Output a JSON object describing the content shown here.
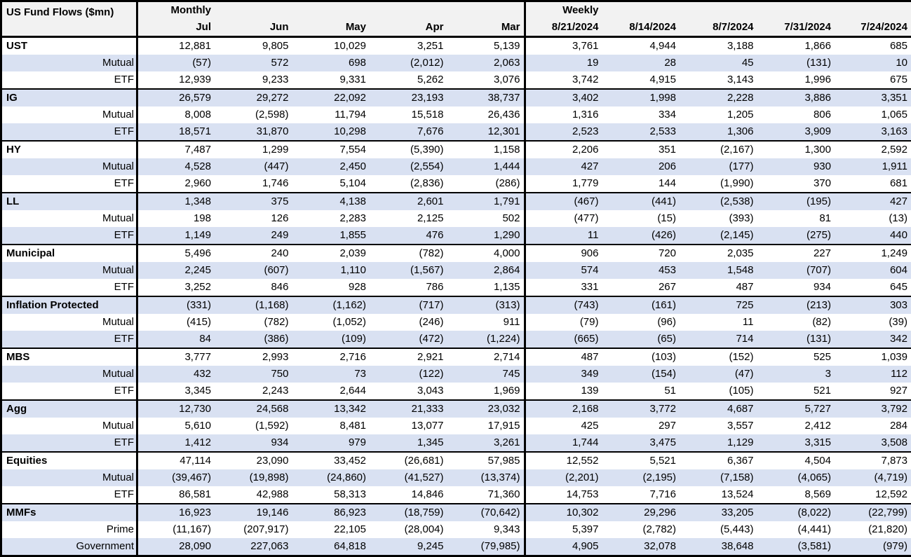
{
  "colors": {
    "band": "#d9e1f2",
    "header_bg": "#f2f2f2",
    "border": "#000000",
    "text": "#000000"
  },
  "chart_data": {
    "type": "table",
    "title": "US Fund Flows ($mn)",
    "column_groups": [
      {
        "label": "Monthly",
        "columns": [
          "Jul",
          "Jun",
          "May",
          "Apr",
          "Mar"
        ]
      },
      {
        "label": "Weekly",
        "columns": [
          "8/21/2024",
          "8/14/2024",
          "8/7/2024",
          "7/31/2024",
          "7/24/2024"
        ]
      }
    ],
    "sections": [
      {
        "name": "UST",
        "rows": [
          {
            "label": "UST",
            "values": [
              "12,881",
              "9,805",
              "10,029",
              "3,251",
              "5,139",
              "3,761",
              "4,944",
              "3,188",
              "1,866",
              "685"
            ]
          },
          {
            "label": "Mutual",
            "values": [
              "(57)",
              "572",
              "698",
              "(2,012)",
              "2,063",
              "19",
              "28",
              "45",
              "(131)",
              "10"
            ]
          },
          {
            "label": "ETF",
            "values": [
              "12,939",
              "9,233",
              "9,331",
              "5,262",
              "3,076",
              "3,742",
              "4,915",
              "3,143",
              "1,996",
              "675"
            ]
          }
        ]
      },
      {
        "name": "IG",
        "rows": [
          {
            "label": "IG",
            "values": [
              "26,579",
              "29,272",
              "22,092",
              "23,193",
              "38,737",
              "3,402",
              "1,998",
              "2,228",
              "3,886",
              "3,351"
            ]
          },
          {
            "label": "Mutual",
            "values": [
              "8,008",
              "(2,598)",
              "11,794",
              "15,518",
              "26,436",
              "1,316",
              "334",
              "1,205",
              "806",
              "1,065"
            ]
          },
          {
            "label": "ETF",
            "values": [
              "18,571",
              "31,870",
              "10,298",
              "7,676",
              "12,301",
              "2,523",
              "2,533",
              "1,306",
              "3,909",
              "3,163"
            ]
          }
        ]
      },
      {
        "name": "HY",
        "rows": [
          {
            "label": "HY",
            "values": [
              "7,487",
              "1,299",
              "7,554",
              "(5,390)",
              "1,158",
              "2,206",
              "351",
              "(2,167)",
              "1,300",
              "2,592"
            ]
          },
          {
            "label": "Mutual",
            "values": [
              "4,528",
              "(447)",
              "2,450",
              "(2,554)",
              "1,444",
              "427",
              "206",
              "(177)",
              "930",
              "1,911"
            ]
          },
          {
            "label": "ETF",
            "values": [
              "2,960",
              "1,746",
              "5,104",
              "(2,836)",
              "(286)",
              "1,779",
              "144",
              "(1,990)",
              "370",
              "681"
            ]
          }
        ]
      },
      {
        "name": "LL",
        "rows": [
          {
            "label": "LL",
            "values": [
              "1,348",
              "375",
              "4,138",
              "2,601",
              "1,791",
              "(467)",
              "(441)",
              "(2,538)",
              "(195)",
              "427"
            ]
          },
          {
            "label": "Mutual",
            "values": [
              "198",
              "126",
              "2,283",
              "2,125",
              "502",
              "(477)",
              "(15)",
              "(393)",
              "81",
              "(13)"
            ]
          },
          {
            "label": "ETF",
            "values": [
              "1,149",
              "249",
              "1,855",
              "476",
              "1,290",
              "11",
              "(426)",
              "(2,145)",
              "(275)",
              "440"
            ]
          }
        ]
      },
      {
        "name": "Municipal",
        "rows": [
          {
            "label": "Municipal",
            "values": [
              "5,496",
              "240",
              "2,039",
              "(782)",
              "4,000",
              "906",
              "720",
              "2,035",
              "227",
              "1,249"
            ]
          },
          {
            "label": "Mutual",
            "values": [
              "2,245",
              "(607)",
              "1,110",
              "(1,567)",
              "2,864",
              "574",
              "453",
              "1,548",
              "(707)",
              "604"
            ]
          },
          {
            "label": "ETF",
            "values": [
              "3,252",
              "846",
              "928",
              "786",
              "1,135",
              "331",
              "267",
              "487",
              "934",
              "645"
            ]
          }
        ]
      },
      {
        "name": "Inflation Protected",
        "rows": [
          {
            "label": "Inflation Protected",
            "values": [
              "(331)",
              "(1,168)",
              "(1,162)",
              "(717)",
              "(313)",
              "(743)",
              "(161)",
              "725",
              "(213)",
              "303"
            ]
          },
          {
            "label": "Mutual",
            "values": [
              "(415)",
              "(782)",
              "(1,052)",
              "(246)",
              "911",
              "(79)",
              "(96)",
              "11",
              "(82)",
              "(39)"
            ]
          },
          {
            "label": "ETF",
            "values": [
              "84",
              "(386)",
              "(109)",
              "(472)",
              "(1,224)",
              "(665)",
              "(65)",
              "714",
              "(131)",
              "342"
            ]
          }
        ]
      },
      {
        "name": "MBS",
        "rows": [
          {
            "label": "MBS",
            "values": [
              "3,777",
              "2,993",
              "2,716",
              "2,921",
              "2,714",
              "487",
              "(103)",
              "(152)",
              "525",
              "1,039"
            ]
          },
          {
            "label": "Mutual",
            "values": [
              "432",
              "750",
              "73",
              "(122)",
              "745",
              "349",
              "(154)",
              "(47)",
              "3",
              "112"
            ]
          },
          {
            "label": "ETF",
            "values": [
              "3,345",
              "2,243",
              "2,644",
              "3,043",
              "1,969",
              "139",
              "51",
              "(105)",
              "521",
              "927"
            ]
          }
        ]
      },
      {
        "name": "Agg",
        "rows": [
          {
            "label": "Agg",
            "values": [
              "12,730",
              "24,568",
              "13,342",
              "21,333",
              "23,032",
              "2,168",
              "3,772",
              "4,687",
              "5,727",
              "3,792"
            ]
          },
          {
            "label": "Mutual",
            "values": [
              "5,610",
              "(1,592)",
              "8,481",
              "13,077",
              "17,915",
              "425",
              "297",
              "3,557",
              "2,412",
              "284"
            ]
          },
          {
            "label": "ETF",
            "values": [
              "1,412",
              "934",
              "979",
              "1,345",
              "3,261",
              "1,744",
              "3,475",
              "1,129",
              "3,315",
              "3,508"
            ]
          }
        ]
      },
      {
        "name": "Equities",
        "rows": [
          {
            "label": "Equities",
            "values": [
              "47,114",
              "23,090",
              "33,452",
              "(26,681)",
              "57,985",
              "12,552",
              "5,521",
              "6,367",
              "4,504",
              "7,873"
            ]
          },
          {
            "label": "Mutual",
            "values": [
              "(39,467)",
              "(19,898)",
              "(24,860)",
              "(41,527)",
              "(13,374)",
              "(2,201)",
              "(2,195)",
              "(7,158)",
              "(4,065)",
              "(4,719)"
            ]
          },
          {
            "label": "ETF",
            "values": [
              "86,581",
              "42,988",
              "58,313",
              "14,846",
              "71,360",
              "14,753",
              "7,716",
              "13,524",
              "8,569",
              "12,592"
            ]
          }
        ]
      },
      {
        "name": "MMFs",
        "rows": [
          {
            "label": "MMFs",
            "values": [
              "16,923",
              "19,146",
              "86,923",
              "(18,759)",
              "(70,642)",
              "10,302",
              "29,296",
              "33,205",
              "(8,022)",
              "(22,799)"
            ]
          },
          {
            "label": "Prime",
            "values": [
              "(11,167)",
              "(207,917)",
              "22,105",
              "(28,004)",
              "9,343",
              "5,397",
              "(2,782)",
              "(5,443)",
              "(4,441)",
              "(21,820)"
            ]
          },
          {
            "label": "Government",
            "values": [
              "28,090",
              "227,063",
              "64,818",
              "9,245",
              "(79,985)",
              "4,905",
              "32,078",
              "38,648",
              "(3,581)",
              "(979)"
            ]
          }
        ]
      }
    ]
  }
}
